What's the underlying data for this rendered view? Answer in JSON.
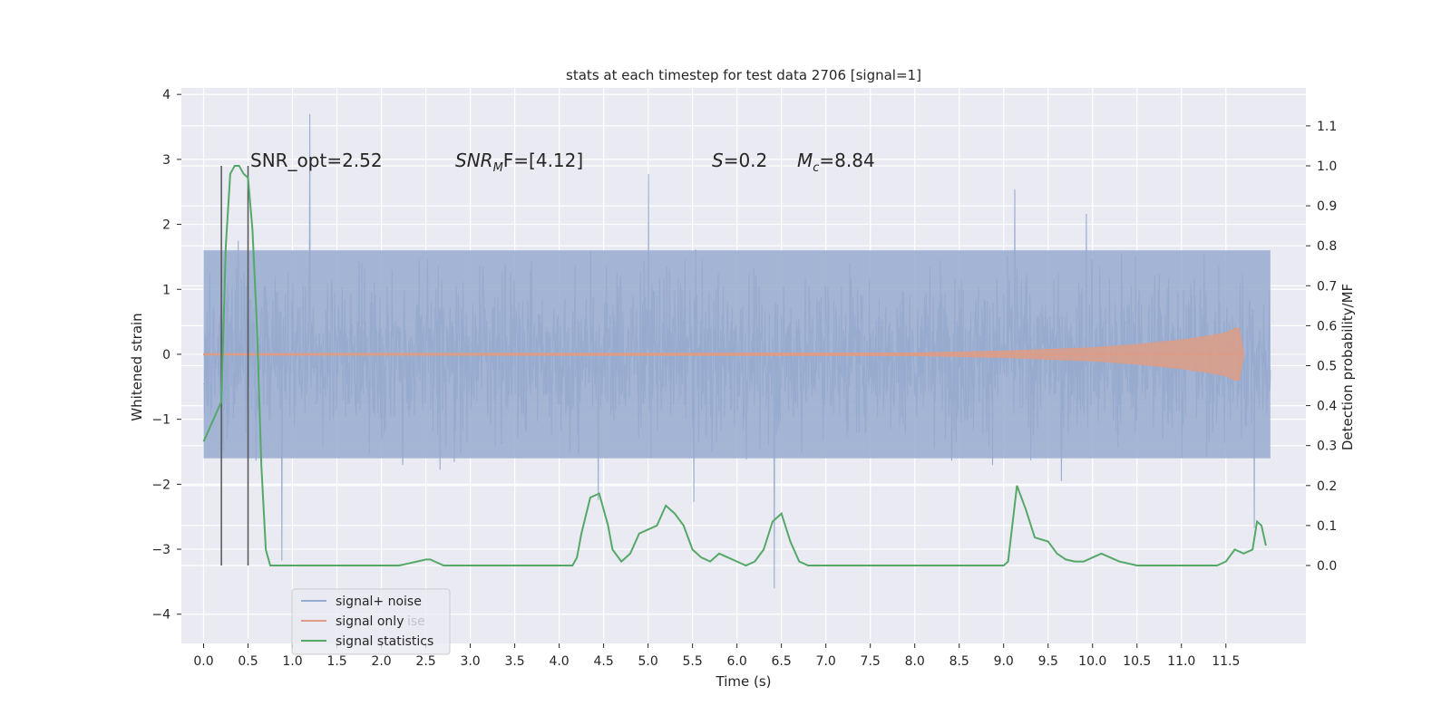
{
  "chart_data": {
    "type": "line",
    "title": "stats at each timestep for test data 2706 [signal=1]",
    "xlabel": "Time (s)",
    "ylabel": "Whitened strain",
    "y2label": "Detection probability/MF",
    "xlim": [
      -0.25,
      12.4
    ],
    "ylim": [
      -4.45,
      4.1
    ],
    "y2lim": [
      -0.195,
      1.195
    ],
    "x_ticks": [
      "0.0",
      "0.5",
      "1.0",
      "1.5",
      "2.0",
      "2.5",
      "3.0",
      "3.5",
      "4.0",
      "4.5",
      "5.0",
      "5.5",
      "6.0",
      "6.5",
      "7.0",
      "7.5",
      "8.0",
      "8.5",
      "9.0",
      "9.5",
      "10.0",
      "10.5",
      "11.0",
      "11.5"
    ],
    "y_ticks": [
      "4",
      "3",
      "2",
      "1",
      "0",
      "−1",
      "−2",
      "−3",
      "−4"
    ],
    "y2_ticks": [
      "1.1",
      "1.0",
      "0.9",
      "0.8",
      "0.7",
      "0.6",
      "0.5",
      "0.4",
      "0.3",
      "0.2",
      "0.1",
      "0.0"
    ],
    "grid": true,
    "legend_position": "bottom-left",
    "legend": [
      "signal+ noise",
      "signal only",
      "signal statistics"
    ],
    "legend_ghost": "ise",
    "annotations": {
      "snr_opt": "SNR_opt=2.52",
      "snr_mf_pre": "SNR",
      "snr_mf_sub": "M",
      "snr_mf_post": "F=[4.12]",
      "s_sym": "S",
      "s_val": "=0.2",
      "mc_sym": "M",
      "mc_sub": "c",
      "mc_val": "=8.84"
    },
    "vertical_markers_x": [
      0.2,
      0.5
    ],
    "noise_series": {
      "name": "signal+ noise",
      "color": "#97aacf",
      "x_range": [
        0.0,
        12.0
      ],
      "band_approx": [
        -1.6,
        1.6
      ],
      "extremes_approx": [
        -3.6,
        3.7
      ]
    },
    "signal_series": {
      "name": "signal only",
      "color": "#dd9c85",
      "x": [
        0.0,
        8.0,
        9.0,
        10.0,
        10.5,
        11.0,
        11.3,
        11.5,
        11.6,
        11.65,
        11.7
      ],
      "amplitude": [
        0.01,
        0.02,
        0.05,
        0.1,
        0.15,
        0.22,
        0.28,
        0.33,
        0.4,
        0.4,
        0.0
      ]
    },
    "stat_series": {
      "name": "signal statistics",
      "color": "#55a868",
      "x": [
        0.0,
        0.1,
        0.2,
        0.25,
        0.3,
        0.35,
        0.4,
        0.45,
        0.5,
        0.55,
        0.6,
        0.65,
        0.7,
        0.75,
        1.0,
        1.5,
        2.0,
        2.2,
        2.3,
        2.4,
        2.5,
        2.55,
        2.6,
        2.7,
        3.0,
        3.5,
        4.0,
        4.15,
        4.2,
        4.25,
        4.35,
        4.45,
        4.55,
        4.6,
        4.7,
        4.8,
        4.9,
        5.0,
        5.1,
        5.2,
        5.3,
        5.4,
        5.5,
        5.6,
        5.7,
        5.8,
        5.9,
        6.0,
        6.1,
        6.2,
        6.3,
        6.4,
        6.5,
        6.6,
        6.7,
        6.8,
        6.9,
        7.0,
        7.5,
        8.0,
        8.5,
        9.0,
        9.05,
        9.15,
        9.25,
        9.35,
        9.5,
        9.6,
        9.7,
        9.8,
        9.9,
        10.0,
        10.1,
        10.2,
        10.3,
        10.5,
        11.0,
        11.3,
        11.4,
        11.5,
        11.6,
        11.7,
        11.8,
        11.85,
        11.9,
        11.95
      ],
      "y": [
        0.31,
        0.36,
        0.41,
        0.8,
        0.98,
        1.0,
        1.0,
        0.98,
        0.97,
        0.84,
        0.6,
        0.25,
        0.04,
        0.0,
        0.0,
        0.0,
        0.0,
        0.0,
        0.005,
        0.01,
        0.015,
        0.015,
        0.01,
        0.0,
        0.0,
        0.0,
        0.0,
        0.0,
        0.02,
        0.08,
        0.17,
        0.18,
        0.1,
        0.04,
        0.01,
        0.03,
        0.08,
        0.09,
        0.1,
        0.15,
        0.13,
        0.1,
        0.04,
        0.02,
        0.01,
        0.03,
        0.02,
        0.01,
        0.0,
        0.01,
        0.04,
        0.11,
        0.13,
        0.06,
        0.01,
        0.0,
        0.0,
        0.0,
        0.0,
        0.0,
        0.0,
        0.0,
        0.01,
        0.2,
        0.14,
        0.07,
        0.06,
        0.03,
        0.015,
        0.01,
        0.01,
        0.02,
        0.03,
        0.02,
        0.01,
        0.0,
        0.0,
        0.0,
        0.0,
        0.01,
        0.04,
        0.03,
        0.04,
        0.11,
        0.1,
        0.05
      ]
    }
  }
}
